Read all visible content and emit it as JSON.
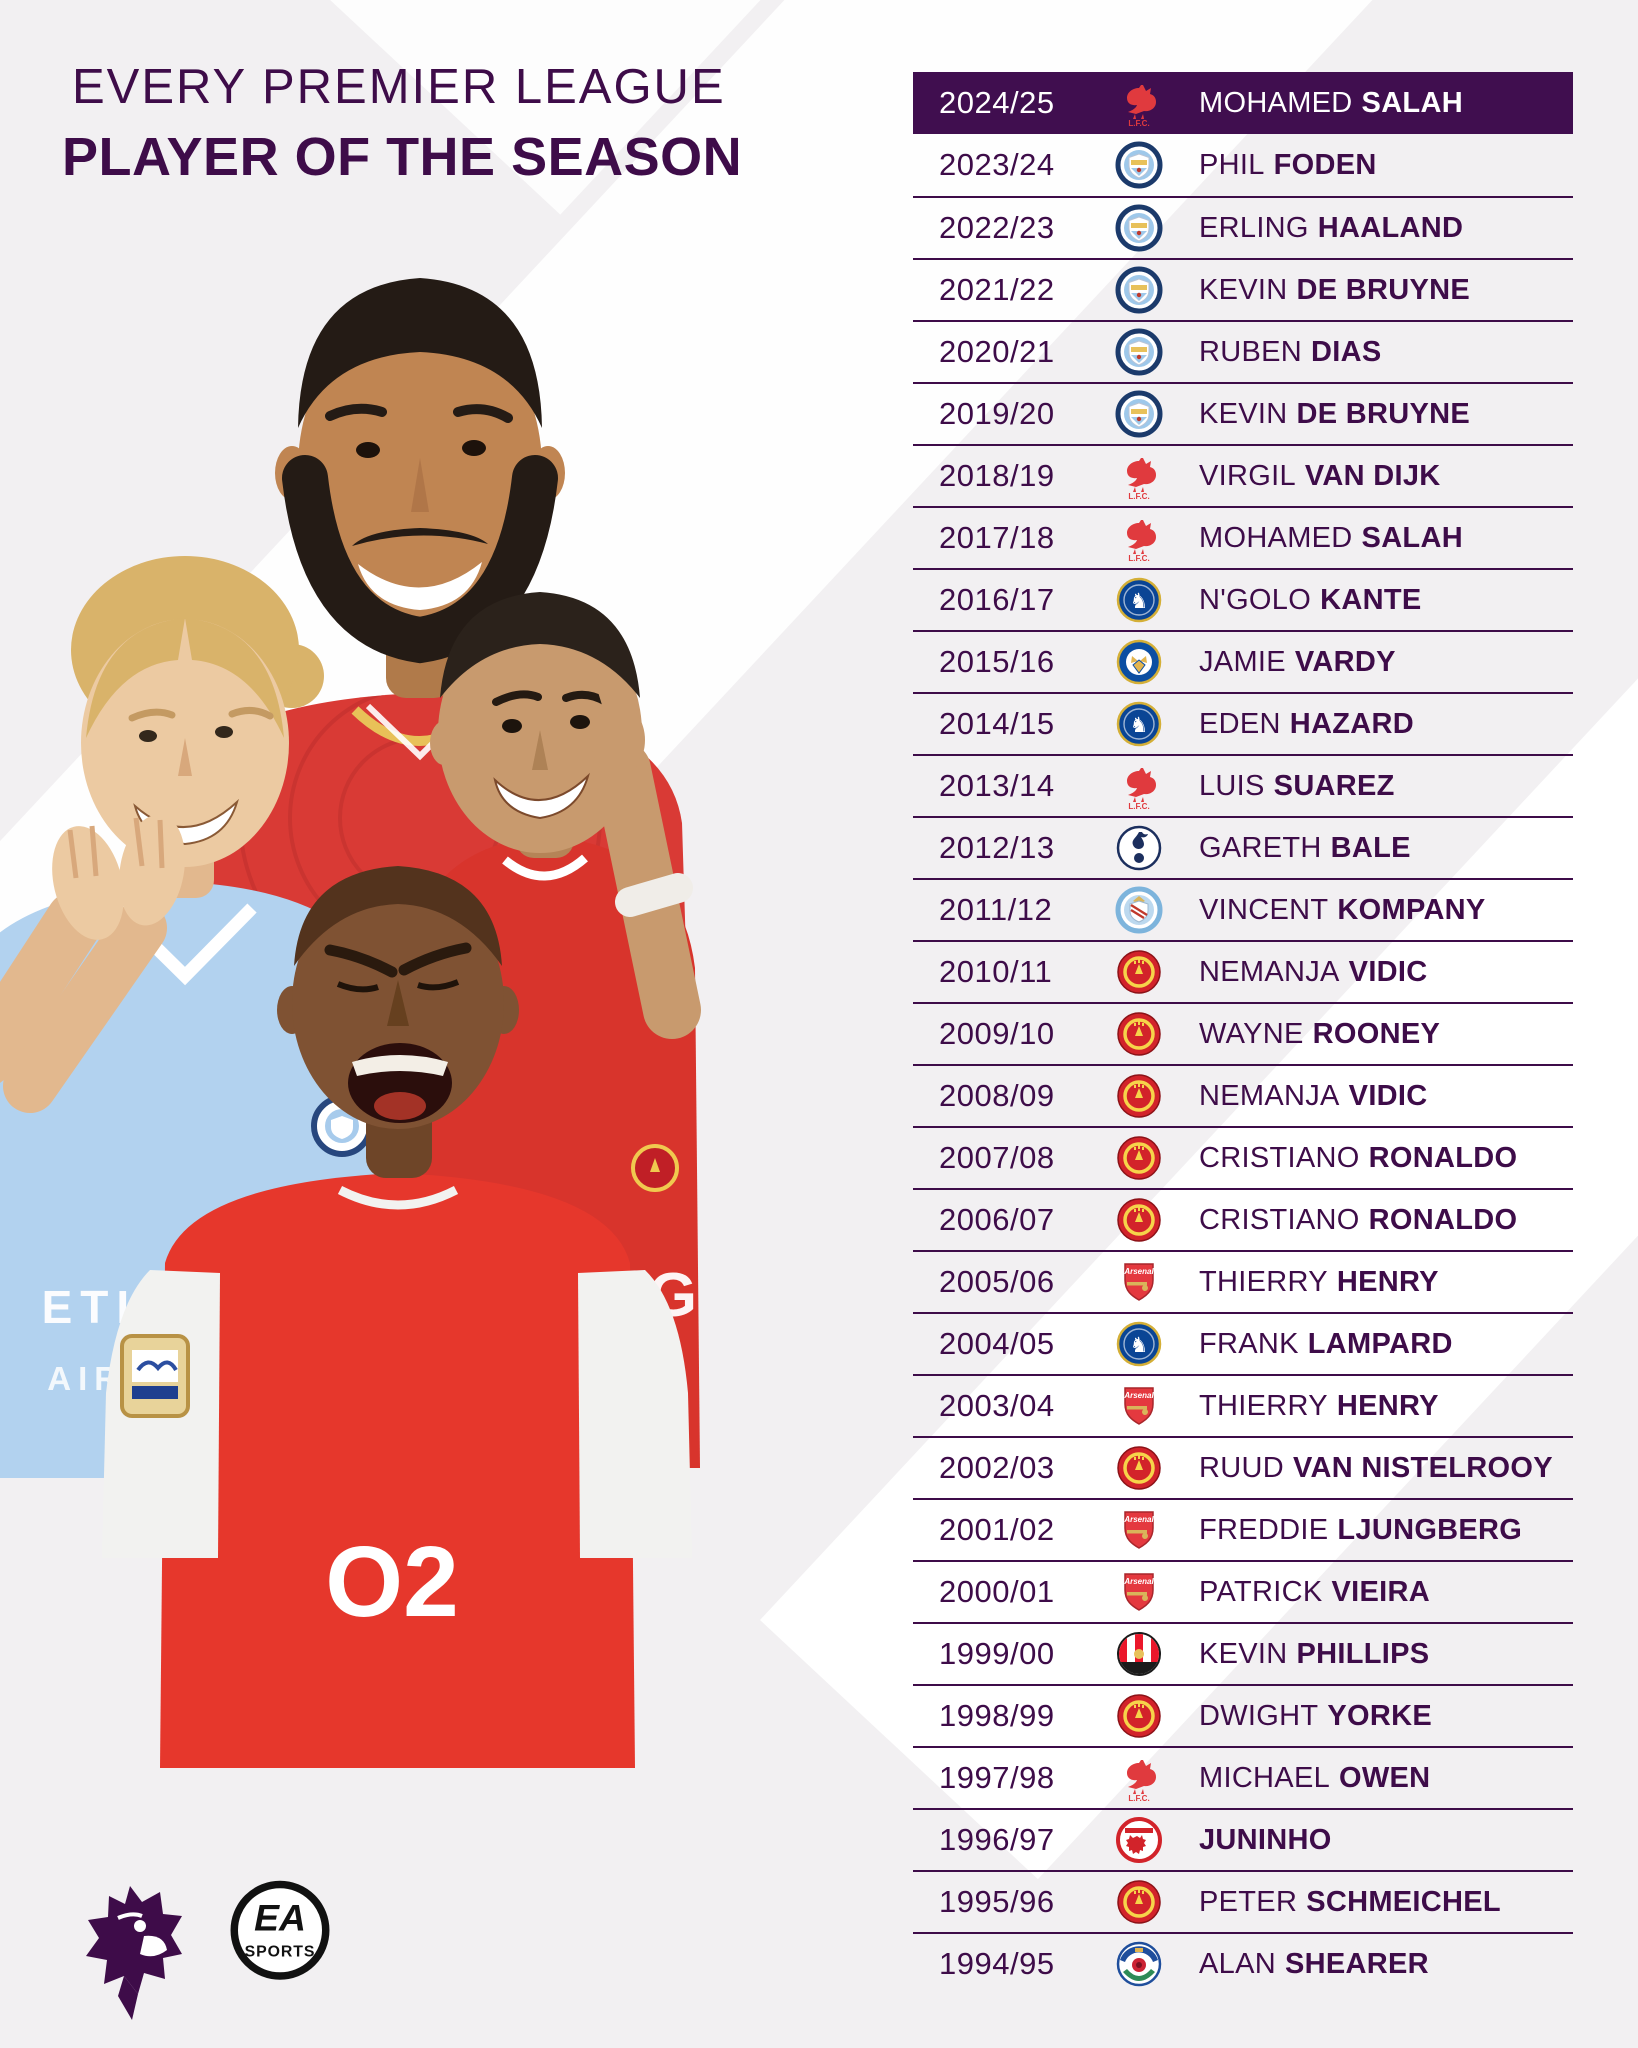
{
  "title": {
    "line1": "EVERY PREMIER LEAGUE",
    "line2": "PLAYER OF THE SEASON"
  },
  "colors": {
    "purple_text": "#3e0c49",
    "highlight_bar": "#400e4f",
    "background": "#f2f0f2",
    "stripe_white": "#ffffff",
    "liverpool_red": "#e03a3e",
    "man_city_blue": "#9ec8ea",
    "man_united_red": "#d2232a",
    "arsenal_red": "#e4393f",
    "chelsea_blue": "#0a4595",
    "leicester_blue": "#0b4ea2",
    "tottenham_navy": "#1c2f5e",
    "sunderland_red": "#eb172b",
    "middlesbrough_red": "#d2232a",
    "blackburn_blue": "#1f4e9c"
  },
  "table": {
    "rows": [
      {
        "season": "2024/25",
        "club": "liverpool",
        "first": "MOHAMED",
        "last": "SALAH",
        "highlight": true
      },
      {
        "season": "2023/24",
        "club": "man-city",
        "first": "PHIL",
        "last": "FODEN",
        "highlight": false
      },
      {
        "season": "2022/23",
        "club": "man-city",
        "first": "ERLING",
        "last": "HAALAND",
        "highlight": false
      },
      {
        "season": "2021/22",
        "club": "man-city",
        "first": "KEVIN",
        "last": "DE BRUYNE",
        "highlight": false
      },
      {
        "season": "2020/21",
        "club": "man-city",
        "first": "RUBEN",
        "last": "DIAS",
        "highlight": false
      },
      {
        "season": "2019/20",
        "club": "man-city",
        "first": "KEVIN",
        "last": "DE BRUYNE",
        "highlight": false
      },
      {
        "season": "2018/19",
        "club": "liverpool",
        "first": "VIRGIL",
        "last": "VAN DIJK",
        "highlight": false
      },
      {
        "season": "2017/18",
        "club": "liverpool",
        "first": "MOHAMED",
        "last": "SALAH",
        "highlight": false
      },
      {
        "season": "2016/17",
        "club": "chelsea",
        "first": "N'GOLO",
        "last": "KANTE",
        "highlight": false
      },
      {
        "season": "2015/16",
        "club": "leicester",
        "first": "JAMIE",
        "last": "VARDY",
        "highlight": false
      },
      {
        "season": "2014/15",
        "club": "chelsea",
        "first": "EDEN",
        "last": "HAZARD",
        "highlight": false
      },
      {
        "season": "2013/14",
        "club": "liverpool",
        "first": "LUIS",
        "last": "SUAREZ",
        "highlight": false
      },
      {
        "season": "2012/13",
        "club": "tottenham",
        "first": "GARETH",
        "last": "BALE",
        "highlight": false
      },
      {
        "season": "2011/12",
        "club": "man-city-old",
        "first": "VINCENT",
        "last": "KOMPANY",
        "highlight": false
      },
      {
        "season": "2010/11",
        "club": "man-united",
        "first": "NEMANJA",
        "last": "VIDIC",
        "highlight": false
      },
      {
        "season": "2009/10",
        "club": "man-united",
        "first": "WAYNE",
        "last": "ROONEY",
        "highlight": false
      },
      {
        "season": "2008/09",
        "club": "man-united",
        "first": "NEMANJA",
        "last": "VIDIC",
        "highlight": false
      },
      {
        "season": "2007/08",
        "club": "man-united",
        "first": "CRISTIANO",
        "last": "RONALDO",
        "highlight": false
      },
      {
        "season": "2006/07",
        "club": "man-united",
        "first": "CRISTIANO",
        "last": "RONALDO",
        "highlight": false
      },
      {
        "season": "2005/06",
        "club": "arsenal",
        "first": "THIERRY",
        "last": "HENRY",
        "highlight": false
      },
      {
        "season": "2004/05",
        "club": "chelsea",
        "first": "FRANK",
        "last": "LAMPARD",
        "highlight": false
      },
      {
        "season": "2003/04",
        "club": "arsenal",
        "first": "THIERRY",
        "last": "HENRY",
        "highlight": false
      },
      {
        "season": "2002/03",
        "club": "man-united",
        "first": "RUUD",
        "last": "VAN NISTELROOY",
        "highlight": false
      },
      {
        "season": "2001/02",
        "club": "arsenal",
        "first": "FREDDIE",
        "last": "LJUNGBERG",
        "highlight": false
      },
      {
        "season": "2000/01",
        "club": "arsenal",
        "first": "PATRICK",
        "last": "VIEIRA",
        "highlight": false
      },
      {
        "season": "1999/00",
        "club": "sunderland",
        "first": "KEVIN",
        "last": "PHILLIPS",
        "highlight": false
      },
      {
        "season": "1998/99",
        "club": "man-united",
        "first": "DWIGHT",
        "last": "YORKE",
        "highlight": false
      },
      {
        "season": "1997/98",
        "club": "liverpool",
        "first": "MICHAEL",
        "last": "OWEN",
        "highlight": false
      },
      {
        "season": "1996/97",
        "club": "middlesbrough",
        "first": "",
        "last": "JUNINHO",
        "highlight": false
      },
      {
        "season": "1995/96",
        "club": "man-united",
        "first": "PETER",
        "last": "SCHMEICHEL",
        "highlight": false
      },
      {
        "season": "1994/95",
        "club": "blackburn",
        "first": "ALAN",
        "last": "SHEARER",
        "highlight": false
      }
    ]
  },
  "collage": {
    "haaland_shirt_line1": "ETIH",
    "haaland_shirt_line2": "AIRW",
    "ronaldo_shirt_text": "NG",
    "henry_shirt_text": "O2",
    "liverpool_crest_caption": "L.F.C."
  },
  "footer": {
    "ea_top": "EA",
    "ea_bottom": "SPORTS"
  }
}
